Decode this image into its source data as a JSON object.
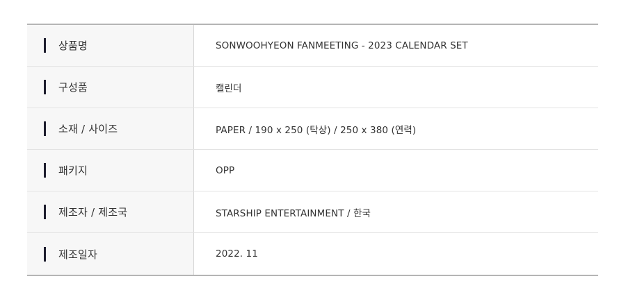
{
  "spec_table": {
    "rows": [
      {
        "label": "상품명",
        "value": "SONWOOHYEON FANMEETING - 2023 CALENDAR SET"
      },
      {
        "label": "구성품",
        "value": "캘린더"
      },
      {
        "label": "소재 / 사이즈",
        "value": "PAPER / 190 x 250 (탁상) / 250 x 380 (연력)"
      },
      {
        "label": "패키지",
        "value": "OPP"
      },
      {
        "label": "제조자 / 제조국",
        "value": "STARSHIP ENTERTAINMENT /  한국"
      },
      {
        "label": "제조일자",
        "value": "2022. 11"
      }
    ]
  }
}
